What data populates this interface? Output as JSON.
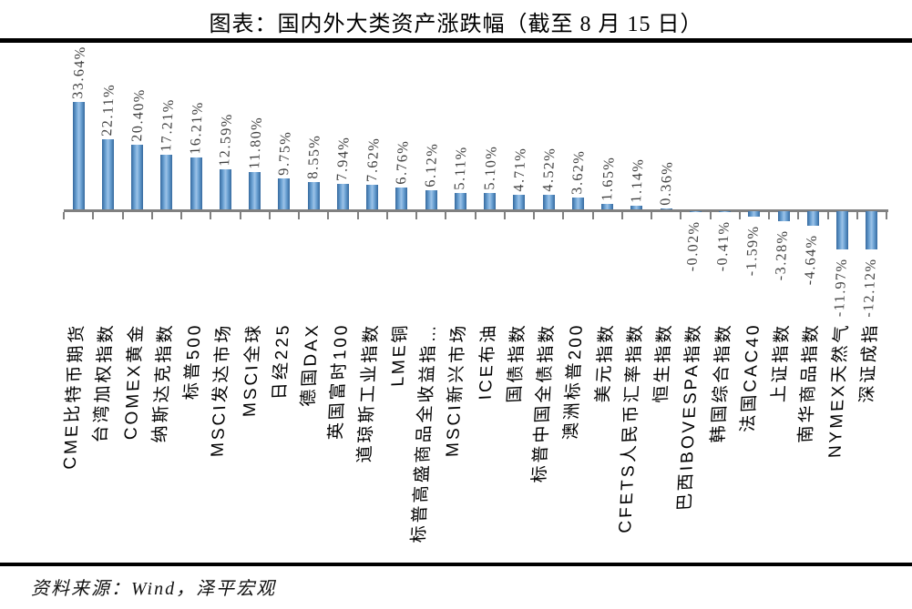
{
  "title": "图表：国内外大类资产涨跌幅（截至 8 月 15 日）",
  "source": "资料来源：Wind，泽平宏观",
  "colors": {
    "bar_edge": "#35699e",
    "bar_body": "#6ca2d4",
    "bar_mid": "#9cc3e8",
    "axis": "#808080",
    "rule": "#000000",
    "value_label": "#404040",
    "category_label": "#000000"
  },
  "chart_data": {
    "type": "bar",
    "title": "图表：国内外大类资产涨跌幅（截至 8 月 15 日）",
    "xlabel": "",
    "ylabel": "",
    "ylim": [
      -14,
      36
    ],
    "grid": false,
    "legend": "none",
    "bar_color": "blue-gradient",
    "categories": [
      "CME比特币期货",
      "台湾加权指数",
      "COMEX黄金",
      "纳斯达克指数",
      "标普500",
      "MSCI发达市场",
      "MSCI全球",
      "日经225",
      "德国DAX",
      "英国富时100",
      "道琼斯工业指数",
      "LME铜",
      "标普高盛商品全收益指…",
      "MSCI新兴市场",
      "ICE布油",
      "国债指数",
      "标普中国全债指数",
      "澳洲标普200",
      "美元指数",
      "CFETS人民币汇率指数",
      "恒生指数",
      "巴西IBOVESPA指数",
      "韩国综合指数",
      "法国CAC40",
      "上证指数",
      "南华商品指数",
      "NYMEX天然气",
      "深证成指"
    ],
    "values": [
      33.64,
      22.11,
      20.4,
      17.21,
      16.21,
      12.59,
      11.8,
      9.75,
      8.55,
      7.94,
      7.62,
      6.76,
      6.12,
      5.11,
      5.1,
      4.71,
      4.52,
      3.62,
      1.65,
      1.14,
      0.36,
      -0.02,
      -0.41,
      -1.59,
      -3.28,
      -4.64,
      -11.97,
      -12.12
    ],
    "value_labels": [
      "33.64%",
      "22.11%",
      "20.40%",
      "17.21%",
      "16.21%",
      "12.59%",
      "11.80%",
      "9.75%",
      "8.55%",
      "7.94%",
      "7.62%",
      "6.76%",
      "6.12%",
      "5.11%",
      "5.10%",
      "4.71%",
      "4.52%",
      "3.62%",
      "1.65%",
      "1.14%",
      "0.36%",
      "-0.02%",
      "-0.41%",
      "-1.59%",
      "-3.28%",
      "-4.64%",
      "-11.97%",
      "-12.12%"
    ]
  }
}
